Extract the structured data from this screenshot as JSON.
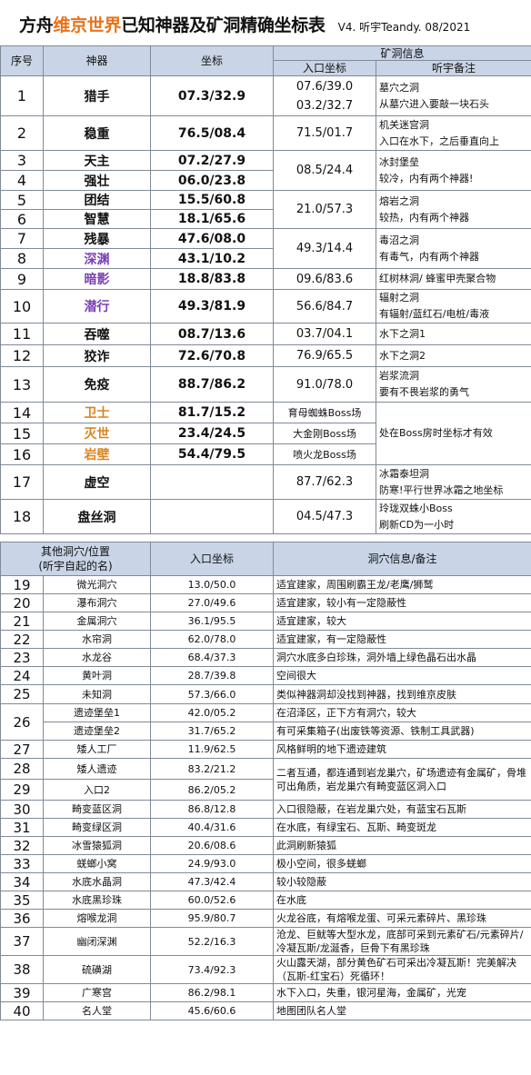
{
  "title": {
    "prefix": "方舟",
    "highlight": "维京世界",
    "suffix": "已知神器及矿洞精确坐标表",
    "meta": "V4.  听宇Teandy. 08/2021"
  },
  "table1": {
    "headers": {
      "idx": "序号",
      "artifact": "神器",
      "coord": "坐标",
      "cave_info": "矿洞信息",
      "entrance": "入口坐标",
      "notes": "听宇备注"
    },
    "rows": [
      {
        "idx": "1",
        "name": "猎手",
        "coord": "07.3/32.9",
        "entrance": [
          "07.6/39.0",
          "03.2/32.7"
        ],
        "note": [
          "墓穴之洞",
          "从墓穴进入要敲一块石头"
        ]
      },
      {
        "idx": "2",
        "name": "稳重",
        "coord": "76.5/08.4",
        "entrance": [
          "71.5/01.7"
        ],
        "note": [
          "机关迷宫洞",
          "入口在水下，之后垂直向上"
        ]
      },
      {
        "idx": "3",
        "name": "天主",
        "coord": "07.2/27.9"
      },
      {
        "idx": "4",
        "name": "强壮",
        "coord": "06.0/23.8"
      },
      {
        "idx": "5",
        "name": "团结",
        "coord": "15.5/60.8"
      },
      {
        "idx": "6",
        "name": "智慧",
        "coord": "18.1/65.6"
      },
      {
        "idx": "7",
        "name": "残暴",
        "coord": "47.6/08.0"
      },
      {
        "idx": "8",
        "name": "深渊",
        "coord": "43.1/10.2"
      },
      {
        "idx": "9",
        "name": "暗影",
        "coord": "18.8/83.8",
        "entrance": [
          "09.6/83.6"
        ],
        "note": [
          "红树林洞/ 蜂蜜甲壳聚合物"
        ]
      },
      {
        "idx": "10",
        "name": "潜行",
        "coord": "49.3/81.9",
        "entrance": [
          "56.6/84.7"
        ],
        "note": [
          "辐射之洞",
          "有辐射/蓝红石/电桩/毒液"
        ]
      },
      {
        "idx": "11",
        "name": "吞噬",
        "coord": "08.7/13.6",
        "entrance": [
          "03.7/04.1"
        ],
        "note": [
          "水下之洞1"
        ]
      },
      {
        "idx": "12",
        "name": "狡诈",
        "coord": "72.6/70.8",
        "entrance": [
          "76.9/65.5"
        ],
        "note": [
          "水下之洞2"
        ]
      },
      {
        "idx": "13",
        "name": "免疫",
        "coord": "88.7/86.2",
        "entrance": [
          "91.0/78.0"
        ],
        "note": [
          "岩浆流洞",
          "要有不畏岩浆的勇气"
        ]
      },
      {
        "idx": "14",
        "name": "卫士",
        "coord": "81.7/15.2",
        "entrance": [
          "育母蜘蛛Boss场"
        ]
      },
      {
        "idx": "15",
        "name": "灭世",
        "coord": "23.4/24.5",
        "entrance": [
          "大金刚Boss场"
        ]
      },
      {
        "idx": "16",
        "name": "岩壁",
        "coord": "54.4/79.5",
        "entrance": [
          "喷火龙Boss场"
        ]
      },
      {
        "idx": "17",
        "name": "虚空",
        "coord": "",
        "entrance": [
          "87.7/62.3"
        ],
        "note": [
          "冰霜泰坦洞",
          "防寒!平行世界冰霜之地坐标"
        ]
      },
      {
        "idx": "18",
        "name": "盘丝洞",
        "coord": "",
        "entrance": [
          "04.5/47.3"
        ],
        "note": [
          "玲珑双蛛小Boss",
          "刷新CD为一小时"
        ]
      }
    ],
    "merged": {
      "g34_entrance": "08.5/24.4",
      "g34_note": [
        "冰封堡垒",
        "较冷，内有两个神器!"
      ],
      "g56_entrance": "21.0/57.3",
      "g56_note": [
        "熔岩之洞",
        "较热，内有两个神器"
      ],
      "g78_entrance": "49.3/14.4",
      "g78_note": [
        "毒沼之洞",
        "有毒气，内有两个神器"
      ],
      "boss_note": "处在Boss房时坐标才有效"
    }
  },
  "table2": {
    "headers": {
      "name": "其他洞穴/位置\n(听宇自起的名)",
      "coord": "入口坐标",
      "info": "洞穴信息/备注"
    },
    "rows": [
      {
        "idx": "19",
        "name": "微光洞穴",
        "coord": "13.0/50.0",
        "note": "适宜建家，周围刷霸王龙/老鹰/狮鹫"
      },
      {
        "idx": "20",
        "name": "瀑布洞穴",
        "coord": "27.0/49.6",
        "note": "适宜建家，较小有一定隐蔽性"
      },
      {
        "idx": "21",
        "name": "金属洞穴",
        "coord": "36.1/95.5",
        "note": "适宜建家，较大"
      },
      {
        "idx": "22",
        "name": "水帘洞",
        "coord": "62.0/78.0",
        "note": "适宜建家，有一定隐蔽性"
      },
      {
        "idx": "23",
        "name": "水龙谷",
        "coord": "68.4/37.3",
        "note": "洞穴水底多白珍珠，洞外墙上绿色晶石出水晶"
      },
      {
        "idx": "24",
        "name": "黄叶洞",
        "coord": "28.7/39.8",
        "note": "空间很大"
      },
      {
        "idx": "25",
        "name": "未知洞",
        "coord": "57.3/66.0",
        "note": "类似神器洞却没找到神器，找到维京皮肤"
      },
      {
        "idx": "26",
        "name": "遗迹堡垒1",
        "coord": "42.0/05.2",
        "note": "在沼泽区，正下方有洞穴，较大"
      },
      {
        "idx": "",
        "name": "遗迹堡垒2",
        "coord": "31.7/65.2",
        "note": "有可采集箱子(出废铁等资源、铁制工具武器)"
      },
      {
        "idx": "27",
        "name": "矮人工厂",
        "coord": "11.9/62.5",
        "note": "风格鲜明的地下遗迹建筑"
      },
      {
        "idx": "28",
        "name": "矮人遗迹",
        "coord": "83.2/21.2",
        "note": ""
      },
      {
        "idx": "29",
        "name": "入口2",
        "coord": "86.2/05.2",
        "note": ""
      },
      {
        "idx": "30",
        "name": "畸变蓝区洞",
        "coord": "86.8/12.8",
        "note": "入口很隐蔽，在岩龙巢穴处，有蓝宝石瓦斯"
      },
      {
        "idx": "31",
        "name": "畸变绿区洞",
        "coord": "40.4/31.6",
        "note": "在水底，有绿宝石、瓦斯、畸变斑龙"
      },
      {
        "idx": "32",
        "name": "冰雪猿狐洞",
        "coord": "20.6/08.6",
        "note": "此洞刷新猿狐"
      },
      {
        "idx": "33",
        "name": "蜣螂小窝",
        "coord": "24.9/93.0",
        "note": "极小空间，很多蜣螂"
      },
      {
        "idx": "34",
        "name": "水底水晶洞",
        "coord": "47.3/42.4",
        "note": "较小较隐蔽"
      },
      {
        "idx": "35",
        "name": "水底黑珍珠",
        "coord": "60.0/52.6",
        "note": "在水底"
      },
      {
        "idx": "36",
        "name": "熔喉龙洞",
        "coord": "95.9/80.7",
        "note": "火龙谷底，有熔喉龙蛋、可采元素碎片、黑珍珠"
      },
      {
        "idx": "37",
        "name": "幽闭深渊",
        "coord": "52.2/16.3",
        "note": "沧龙、巨鱿等大型水龙，底部可采到元素矿石/元素碎片/冷凝瓦斯/龙涎香，巨骨下有黑珍珠"
      },
      {
        "idx": "38",
        "name": "硫磺湖",
        "coord": "73.4/92.3",
        "note": "火山露天湖，部分黄色矿石可采出冷凝瓦斯！完美解决（瓦斯-红宝石）死循环！"
      },
      {
        "idx": "39",
        "name": "广寒宫",
        "coord": "86.2/98.1",
        "note": "水下入口，失重，银河星海，金属矿，光宠"
      },
      {
        "idx": "40",
        "name": "名人堂",
        "coord": "45.6/60.6",
        "note": "地图团队名人堂"
      }
    ],
    "merged_28_29_note": "二者互通，都连通到岩龙巢穴，矿场遗迹有金属矿，骨堆可出角质，岩龙巢穴有畸变蓝区洞入口"
  },
  "colors": {
    "header_bg": "#c9d5e6",
    "highlight": "#e8731a",
    "purple": "#7a3fb5",
    "orange": "#d98520",
    "border": "#7f8a99"
  }
}
